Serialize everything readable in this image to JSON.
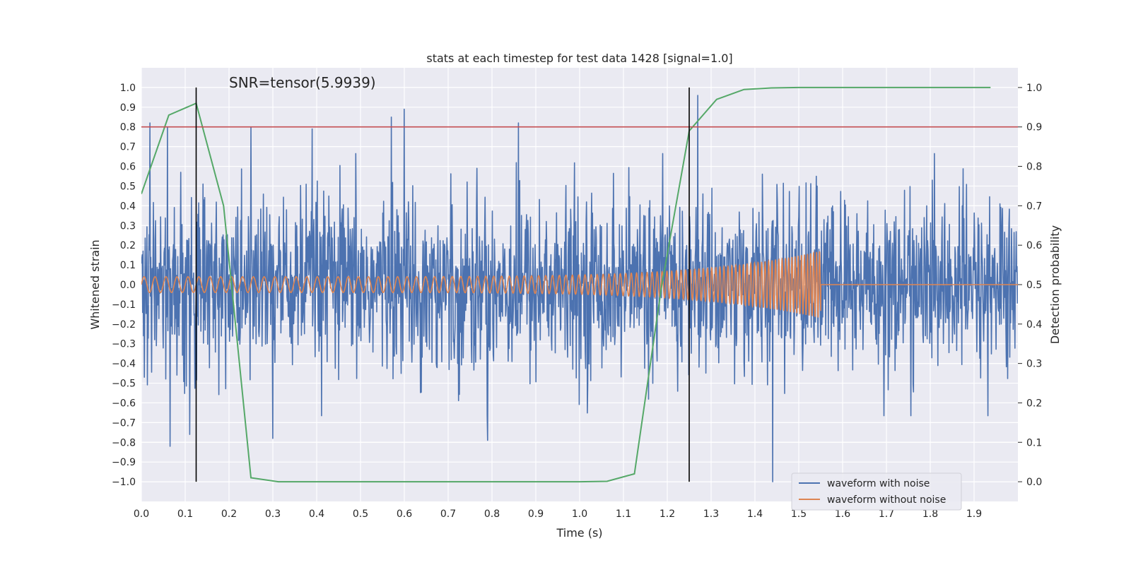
{
  "chart_data": {
    "type": "line",
    "title": "stats at each timestep for test data 1428 [signal=1.0]",
    "xlabel": "Time (s)",
    "ylabel": "Whitened strain",
    "y2label": "Detection probability",
    "xlim": [
      0.0,
      2.0
    ],
    "ylim": [
      -1.1,
      1.1
    ],
    "y2lim": [
      -0.05,
      1.05
    ],
    "x_ticks": [
      0.0,
      0.1,
      0.2,
      0.3,
      0.4,
      0.5,
      0.6,
      0.7,
      0.8,
      0.9,
      1.0,
      1.1,
      1.2,
      1.3,
      1.4,
      1.5,
      1.6,
      1.7,
      1.8,
      1.9
    ],
    "y_ticks": [
      -1.0,
      -0.9,
      -0.8,
      -0.7,
      -0.6,
      -0.5,
      -0.4,
      -0.3,
      -0.2,
      -0.1,
      0.0,
      0.1,
      0.2,
      0.3,
      0.4,
      0.5,
      0.6,
      0.7,
      0.8,
      0.9,
      1.0
    ],
    "y2_ticks": [
      0.0,
      0.1,
      0.2,
      0.3,
      0.4,
      0.5,
      0.6,
      0.7,
      0.8,
      0.9,
      1.0
    ],
    "grid": true,
    "legend_position": "bottom-right",
    "annotation": {
      "text": "SNR=tensor(5.9939)",
      "x": 0.2,
      "y": 1.0
    },
    "threshold_line": {
      "axis": "y2",
      "value": 0.9,
      "color": "#c44e52"
    },
    "vertical_lines": [
      0.125,
      1.25
    ],
    "series": [
      {
        "name": "waveform with noise",
        "axis": "y",
        "color": "#4c72b0",
        "style": "noise",
        "amplitude": 0.35,
        "peak_points": [
          [
            0.02,
            0.82
          ],
          [
            0.06,
            0.8
          ],
          [
            0.09,
            0.57
          ],
          [
            0.11,
            0.84
          ],
          [
            0.065,
            -0.82
          ],
          [
            0.11,
            -0.76
          ],
          [
            0.25,
            0.8
          ],
          [
            0.3,
            -0.78
          ],
          [
            0.39,
            0.79
          ],
          [
            0.57,
            0.85
          ],
          [
            0.6,
            0.89
          ],
          [
            0.79,
            0.8
          ],
          [
            0.79,
            -0.79
          ],
          [
            0.86,
            0.82
          ],
          [
            1.27,
            0.96
          ],
          [
            1.44,
            -1.0
          ],
          [
            1.54,
            0.55
          ]
        ]
      },
      {
        "name": "waveform without noise",
        "axis": "y",
        "color": "#dd8452",
        "style": "chirp",
        "amplitude_start": 0.04,
        "amplitude_peak": 0.17,
        "f_start": 40,
        "f_end": 150,
        "t_end": 1.55
      },
      {
        "name": "",
        "axis": "y2",
        "color": "#55a868",
        "style": "line",
        "x": [
          0.0,
          0.0625,
          0.125,
          0.1875,
          0.25,
          0.3125,
          0.375,
          0.4375,
          0.5,
          0.5625,
          0.625,
          0.6875,
          0.75,
          0.8125,
          0.875,
          0.9375,
          1.0,
          1.0625,
          1.125,
          1.1875,
          1.25,
          1.3125,
          1.375,
          1.4375,
          1.5,
          1.5625,
          1.625,
          1.6875,
          1.75,
          1.8125,
          1.875,
          1.9375
        ],
        "values": [
          0.73,
          0.93,
          0.96,
          0.7,
          0.01,
          0.0,
          0.0,
          0.0,
          0.0,
          0.0,
          0.0,
          0.0,
          0.0,
          0.0,
          0.0,
          0.0,
          0.0,
          0.001,
          0.02,
          0.5,
          0.89,
          0.97,
          0.995,
          0.999,
          1.0,
          1.0,
          1.0,
          1.0,
          1.0,
          1.0,
          1.0,
          1.0
        ]
      }
    ]
  }
}
